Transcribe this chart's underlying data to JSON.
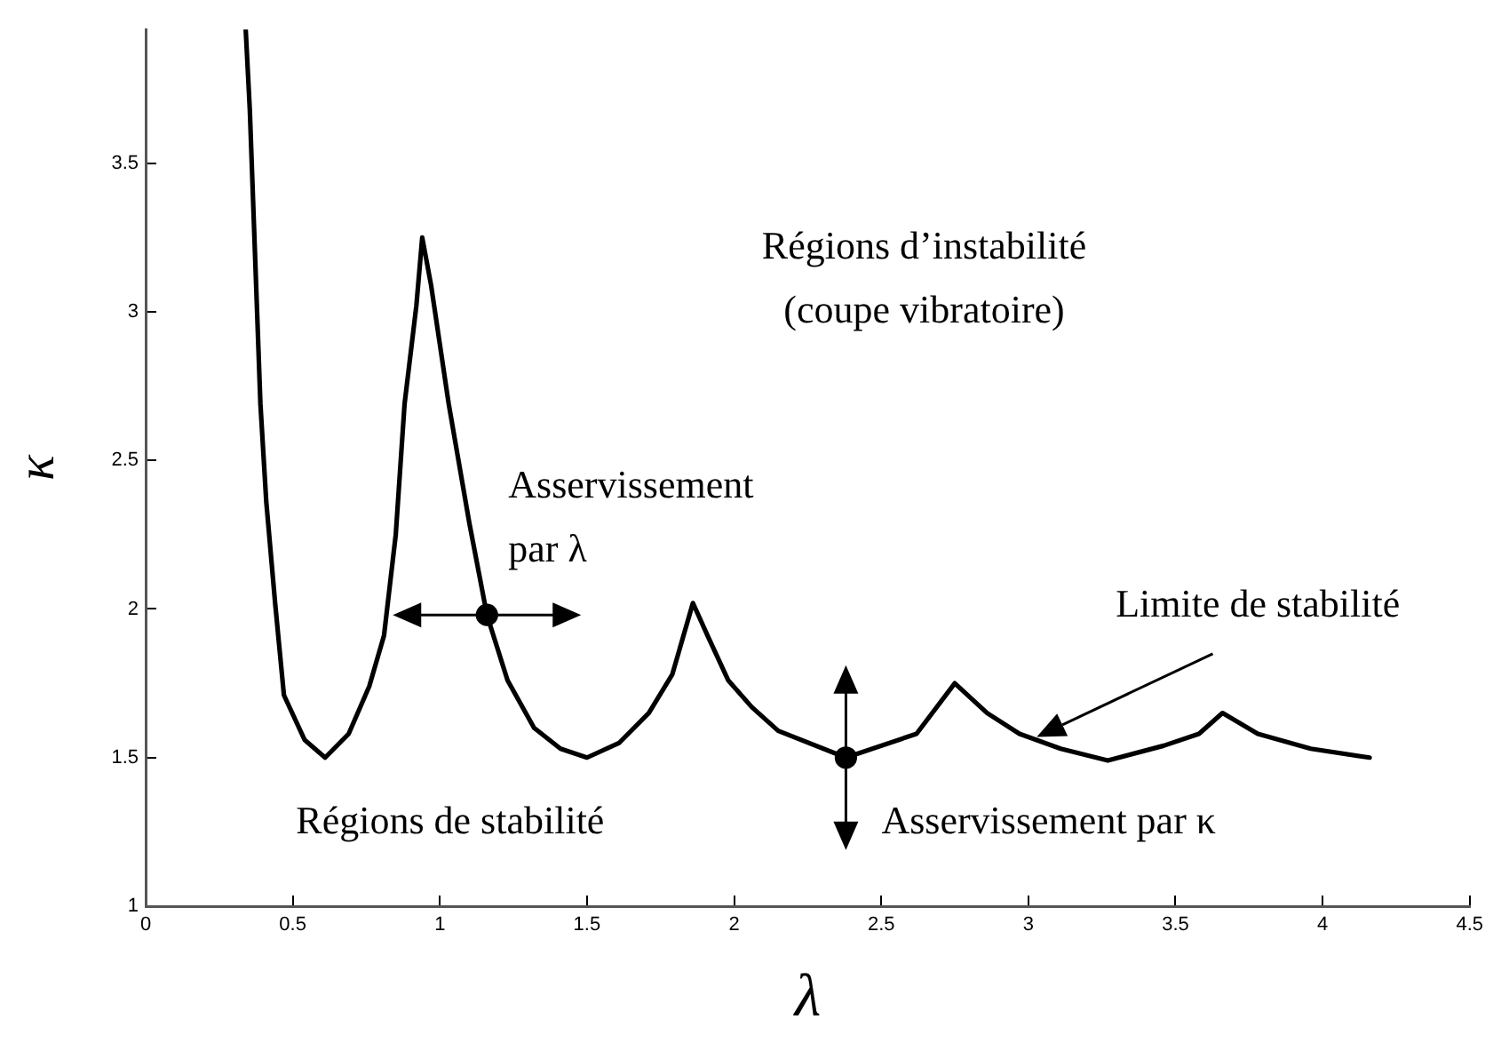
{
  "chart_data": {
    "type": "line",
    "xlabel": "λ",
    "ylabel": "κ",
    "xlim": [
      0,
      4.5
    ],
    "ylim": [
      1,
      3.95
    ],
    "xticks": [
      0,
      0.5,
      1,
      1.5,
      2,
      2.5,
      3,
      3.5,
      4,
      4.5
    ],
    "yticks": [
      1,
      1.5,
      2,
      2.5,
      3,
      3.5
    ],
    "marker": "none",
    "line_style": "solid",
    "legend": false,
    "series": [
      {
        "color": "#000000",
        "x": [
          0.34,
          0.354,
          0.37,
          0.39,
          0.41,
          0.44,
          0.47,
          0.54,
          0.61,
          0.69,
          0.76,
          0.81,
          0.85,
          0.88,
          0.92,
          0.94,
          0.97,
          1.03,
          1.1,
          1.16,
          1.23,
          1.32,
          1.41,
          1.5,
          1.61,
          1.71,
          1.79,
          1.86,
          1.91,
          1.98,
          2.06,
          2.15,
          2.38,
          2.62,
          2.75,
          2.86,
          2.97,
          3.11,
          3.27,
          3.46,
          3.58,
          3.66,
          3.78,
          3.96,
          4.16
        ],
        "values": [
          3.95,
          3.68,
          3.24,
          2.69,
          2.36,
          2.02,
          1.71,
          1.56,
          1.5,
          1.58,
          1.74,
          1.91,
          2.25,
          2.69,
          3.02,
          3.25,
          3.09,
          2.69,
          2.29,
          1.98,
          1.76,
          1.6,
          1.53,
          1.5,
          1.55,
          1.65,
          1.78,
          2.02,
          1.91,
          1.76,
          1.67,
          1.59,
          1.5,
          1.58,
          1.75,
          1.65,
          1.58,
          1.53,
          1.49,
          1.54,
          1.58,
          1.65,
          1.58,
          1.53,
          1.5
        ]
      },
      {
        "type": "scatter",
        "marker": "circle",
        "color": "#000000",
        "x": [
          1.16,
          2.38
        ],
        "values": [
          1.98,
          1.5
        ]
      }
    ],
    "annotations": [
      "Régions d’instabilité\n(coupe vibratoire)",
      "Régions de stabilité",
      {
        "text": "Asservissement\npar λ",
        "x": 1.16,
        "y": 1.98
      },
      {
        "text": "Asservissement par κ",
        "x": 2.38,
        "y": 1.5
      },
      "Limite de stabilité"
    ]
  }
}
